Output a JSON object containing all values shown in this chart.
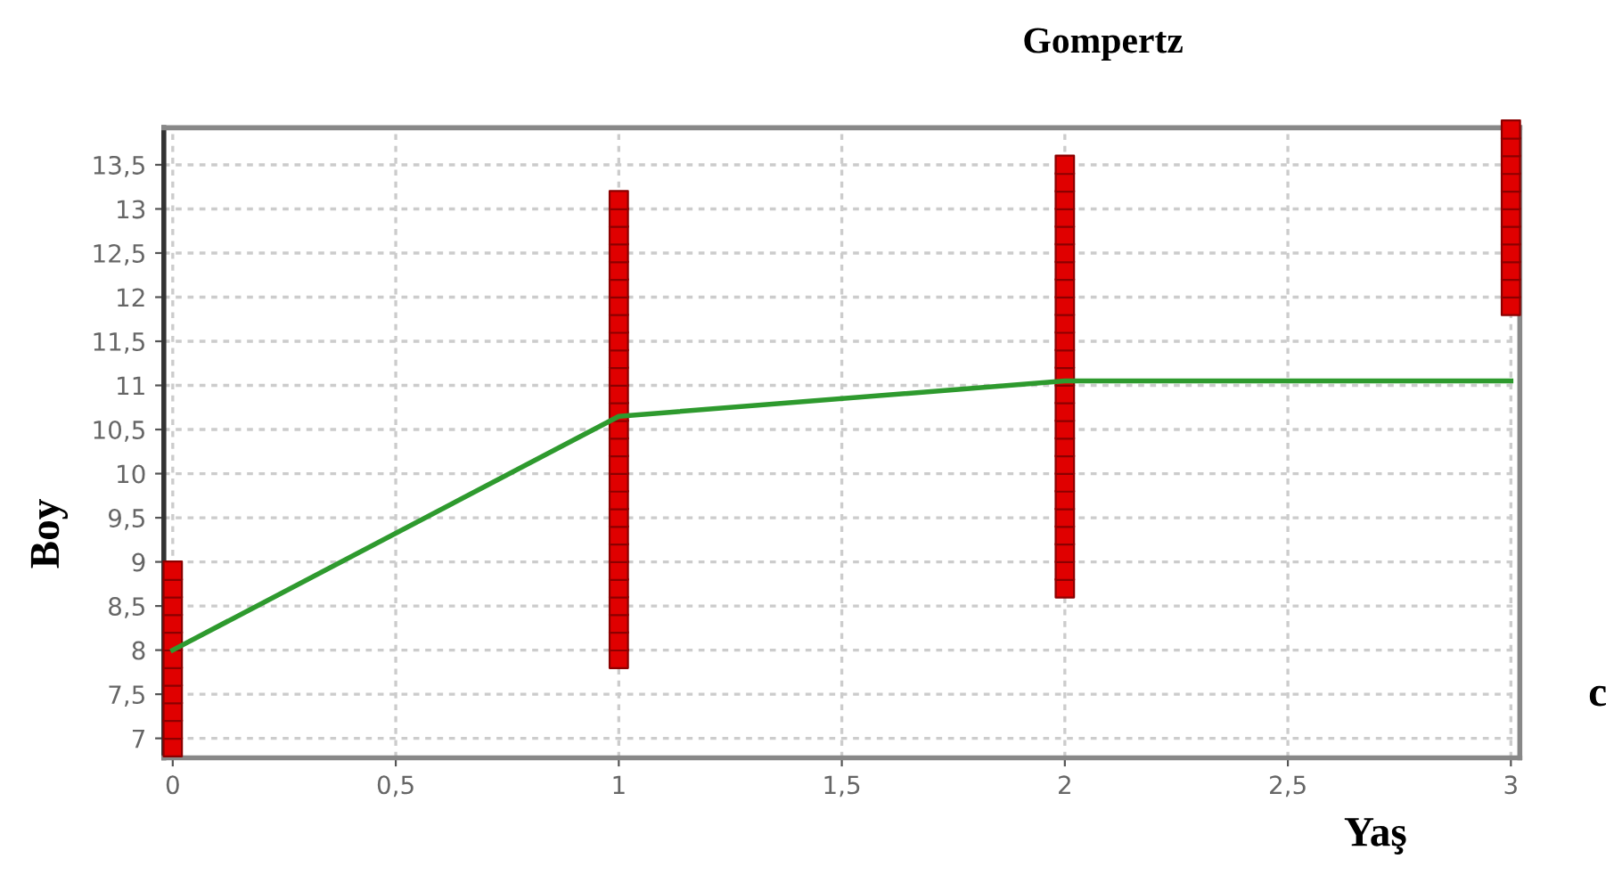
{
  "chart_data": {
    "type": "scatter",
    "title": "Gompertz",
    "xlabel": "Yaş",
    "ylabel": "Boy",
    "annotations": [
      "c"
    ],
    "xlim": [
      -0.02,
      3.02
    ],
    "ylim": [
      6.78,
      13.92
    ],
    "xticks": [
      0,
      {
        "value": 0.5,
        "label": "0,5"
      },
      1,
      {
        "value": 1.5,
        "label": "1,5"
      },
      2,
      {
        "value": 2.5,
        "label": "2,5"
      },
      3
    ],
    "yticks": [
      7,
      {
        "value": 7.5,
        "label": "7,5"
      },
      8,
      {
        "value": 8.5,
        "label": "8,5"
      },
      9,
      {
        "value": 9.5,
        "label": "9,5"
      },
      10,
      {
        "value": 10.5,
        "label": "10,5"
      },
      11,
      {
        "value": 11.5,
        "label": "11,5"
      },
      12,
      {
        "value": 12.5,
        "label": "12,5"
      },
      13,
      {
        "value": 13.5,
        "label": "13,5"
      }
    ],
    "grid": true,
    "legend": false,
    "series": [
      {
        "marker": "square",
        "color": "#e00000",
        "x": [
          0,
          0,
          0,
          0,
          0,
          0,
          0,
          0,
          0,
          0,
          0,
          1,
          1,
          1,
          1,
          1,
          1,
          1,
          1,
          1,
          1,
          1,
          1,
          1,
          1,
          1,
          1,
          1,
          1,
          1,
          1,
          1,
          1,
          1,
          1,
          1,
          1,
          1,
          2,
          2,
          2,
          2,
          2,
          2,
          2,
          2,
          2,
          2,
          2,
          2,
          2,
          2,
          2,
          2,
          2,
          2,
          2,
          2,
          2,
          2,
          2,
          2,
          2,
          3,
          3,
          3,
          3,
          3,
          3,
          3,
          3,
          3,
          3,
          3
        ],
        "values": [
          6.9,
          7.1,
          7.3,
          7.5,
          7.7,
          7.9,
          8.1,
          8.3,
          8.5,
          8.7,
          8.9,
          7.9,
          8.1,
          8.3,
          8.5,
          8.7,
          8.9,
          9.1,
          9.3,
          9.5,
          9.7,
          9.9,
          10.1,
          10.3,
          10.5,
          10.7,
          10.9,
          11.1,
          11.3,
          11.5,
          11.7,
          11.9,
          12.1,
          12.3,
          12.5,
          12.7,
          12.9,
          13.1,
          8.7,
          8.9,
          9.1,
          9.3,
          9.5,
          9.7,
          9.9,
          10.1,
          10.3,
          10.5,
          10.7,
          10.9,
          11.1,
          11.3,
          11.5,
          11.7,
          11.9,
          12.1,
          12.3,
          12.5,
          12.7,
          12.9,
          13.1,
          13.3,
          13.5,
          11.9,
          12.1,
          12.3,
          12.5,
          12.7,
          12.9,
          13.1,
          13.3,
          13.5,
          13.7,
          13.9
        ]
      },
      {
        "type": "line",
        "marker": "none",
        "line_style": "solid",
        "color": "#2e9a2e",
        "x": [
          0,
          1,
          2,
          3
        ],
        "values": [
          8.0,
          10.65,
          11.05,
          11.05
        ]
      }
    ]
  }
}
